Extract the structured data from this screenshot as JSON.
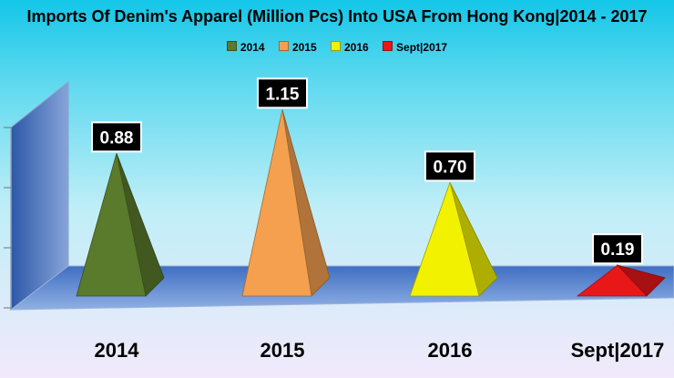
{
  "chart_data": {
    "type": "bar",
    "bar_shape": "pyramid",
    "title": "Imports Of Denim's Apparel (Million Pcs) Into USA From Hong Kong|2014 - 2017",
    "xlabel": "",
    "ylabel": "",
    "categories": [
      "2014",
      "2015",
      "2016",
      "Sept|2017"
    ],
    "values": [
      0.88,
      1.15,
      0.7,
      0.19
    ],
    "data_labels": [
      "0.88",
      "1.15",
      "0.70",
      "0.19"
    ],
    "series": [
      {
        "name": "2014",
        "values": [
          0.88,
          null,
          null,
          null
        ],
        "color": "#5a7a2c"
      },
      {
        "name": "2015",
        "values": [
          null,
          1.15,
          null,
          null
        ],
        "color": "#f5a04f"
      },
      {
        "name": "2016",
        "values": [
          null,
          null,
          0.7,
          null
        ],
        "color": "#f2f200"
      },
      {
        "name": "Sept|2017",
        "values": [
          null,
          null,
          null,
          0.19
        ],
        "color": "#e81818"
      }
    ],
    "ylim": [
      0,
      1.5
    ],
    "legend_position": "top-center",
    "grid": false,
    "floor_color": "#4c7cd0",
    "wall_color": "#6a8bc8"
  }
}
